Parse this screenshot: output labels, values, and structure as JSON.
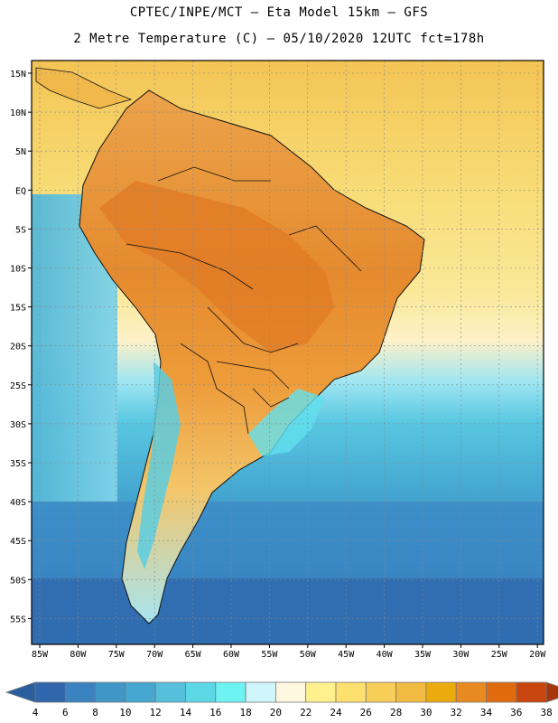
{
  "header": {
    "line1": "CPTEC/INPE/MCT –  Eta Model 15km – GFS",
    "line2": "2 Metre Temperature (C) – 05/10/2020 12UTC fct=178h"
  },
  "map": {
    "variable": "2 Metre Temperature (C)",
    "lat_labels": [
      "15N",
      "10N",
      "5N",
      "EQ",
      "5S",
      "10S",
      "15S",
      "20S",
      "25S",
      "30S",
      "35S",
      "40S",
      "45S",
      "50S",
      "55S"
    ],
    "lon_labels": [
      "85W",
      "80W",
      "75W",
      "70W",
      "65W",
      "60W",
      "55W",
      "50W",
      "45W",
      "40W",
      "35W",
      "30W",
      "25W",
      "20W"
    ],
    "colors": {
      "ocean_cold": "#3f8cc8",
      "ocean_cool": "#5bbfdc",
      "land_warm": "#eb9a3a",
      "land_hot": "#e07a24",
      "ocean_warm": "#f7d268"
    }
  },
  "colorbar": {
    "labels": [
      "4",
      "6",
      "8",
      "10",
      "12",
      "14",
      "16",
      "18",
      "20",
      "22",
      "24",
      "26",
      "28",
      "30",
      "32",
      "34",
      "36",
      "38"
    ],
    "colors": [
      "#2f66ac",
      "#3b82c0",
      "#3f96c7",
      "#46a8d1",
      "#56bfdc",
      "#5cd7e6",
      "#6ef3f3",
      "#cff6fb",
      "#fff8e0",
      "#fff28e",
      "#fde06e",
      "#f7ce58",
      "#f1ba40",
      "#ecab0c",
      "#e88a1f",
      "#e06a0e",
      "#c8460e"
    ],
    "low_color": "#2a5e9e",
    "high_color": "#a8360c"
  }
}
